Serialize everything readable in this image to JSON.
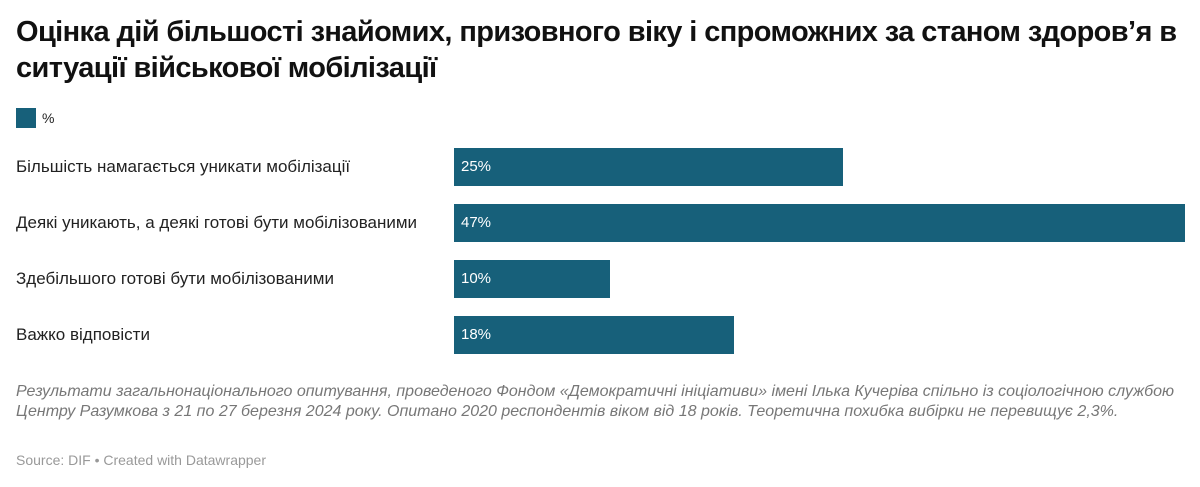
{
  "chart_data": {
    "type": "bar",
    "orientation": "horizontal",
    "title": "Оцінка дій більшості знайомих, призовного віку і спроможних за станом здоров’я в ситуації військової мобілізації",
    "categories": [
      "Більшість намагається уникати мобілізації",
      "Деякі уникають, а деякі готові бути мобілізованими",
      "Здебільшого готові бути мобілізованими",
      "Важко відповісти"
    ],
    "series": [
      {
        "name": "%",
        "color": "#17607a",
        "values": [
          25,
          47,
          10,
          18
        ],
        "value_labels": [
          "25%",
          "47%",
          "10%",
          "18%"
        ]
      }
    ],
    "note": "Результати загальнонаціонального опитування, проведеного Фондом «Демократичні ініціативи» імені Ілька Кучеріва спільно із соціологічною службою Центру Разумкова з 21 по 27 березня 2024 року. Опитано 2020 респондентів віком від 18 років. Теоретична похибка вибірки не перевищує 2,3%.",
    "source": "Source: DIF • Created with Datawrapper"
  }
}
